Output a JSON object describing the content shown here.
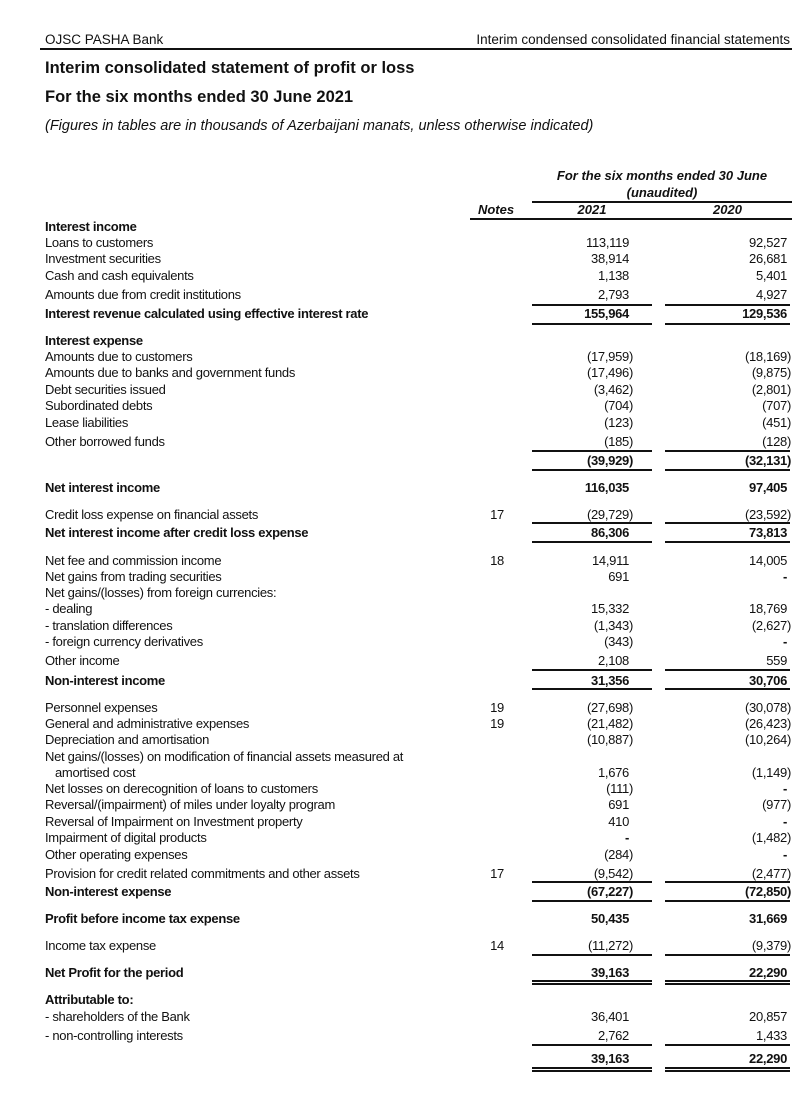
{
  "header": {
    "bank": "OJSC PASHA Bank",
    "doc": "Interim condensed consolidated financial statements"
  },
  "title": "Interim consolidated statement of profit or loss",
  "subtitle": "For the six months ended 30 June 2021",
  "note": "(Figures in tables are in thousands of Azerbaijani manats, unless otherwise indicated)",
  "columns": {
    "period": "For the six months ended 30 June",
    "audit": "(unaudited)",
    "notes": "Notes",
    "y1": "2021",
    "y2": "2020"
  },
  "rows": [
    {
      "label": "Interest income",
      "bold": true
    },
    {
      "label": "Loans to customers",
      "v1": "113,119",
      "v2": "92,527"
    },
    {
      "label": "Investment securities",
      "v1": "38,914",
      "v2": "26,681"
    },
    {
      "label": "Cash and cash equivalents",
      "v1": "1,138",
      "v2": "5,401"
    },
    {
      "label": "Amounts due from credit institutions",
      "v1": "2,793",
      "v2": "4,927"
    },
    {
      "label": "Interest revenue calculated using effective interest rate",
      "v1": "155,964",
      "v2": "129,536",
      "bold": true
    },
    {
      "label": "Interest expense",
      "bold": true
    },
    {
      "label": "Amounts due to customers",
      "v1": "(17,959)",
      "v2": "(18,169)"
    },
    {
      "label": "Amounts due to banks and government funds",
      "v1": "(17,496)",
      "v2": "(9,875)"
    },
    {
      "label": "Debt securities issued",
      "v1": "(3,462)",
      "v2": "(2,801)"
    },
    {
      "label": "Subordinated debts",
      "v1": "(704)",
      "v2": "(707)"
    },
    {
      "label": "Lease liabilities",
      "v1": "(123)",
      "v2": "(451)"
    },
    {
      "label": "Other borrowed funds",
      "v1": "(185)",
      "v2": "(128)"
    },
    {
      "label": "",
      "v1": "(39,929)",
      "v2": "(32,131)",
      "bold": true
    },
    {
      "label": "Net interest income",
      "v1": "116,035",
      "v2": "97,405",
      "bold": true
    },
    {
      "label": "Credit loss expense on financial assets",
      "note": "17",
      "v1": "(29,729)",
      "v2": "(23,592)"
    },
    {
      "label": "Net interest income after credit loss expense",
      "v1": "86,306",
      "v2": "73,813",
      "bold": true
    },
    {
      "label": "Net fee and commission income",
      "note": "18",
      "v1": "14,911",
      "v2": "14,005"
    },
    {
      "label": "Net gains from trading securities",
      "v1": "691",
      "v2": "-"
    },
    {
      "label": "Net gains/(losses) from foreign currencies:"
    },
    {
      "label": "- dealing",
      "v1": "15,332",
      "v2": "18,769"
    },
    {
      "label": "- translation differences",
      "v1": "(1,343)",
      "v2": "(2,627)"
    },
    {
      "label": "- foreign currency derivatives",
      "v1": "(343)",
      "v2": "-"
    },
    {
      "label": "Other income",
      "v1": "2,108",
      "v2": "559"
    },
    {
      "label": "Non-interest income",
      "v1": "31,356",
      "v2": "30,706",
      "bold": true
    },
    {
      "label": "Personnel expenses",
      "note": "19",
      "v1": "(27,698)",
      "v2": "(30,078)"
    },
    {
      "label": "General and administrative expenses",
      "note": "19",
      "v1": "(21,482)",
      "v2": "(26,423)"
    },
    {
      "label": "Depreciation and amortisation",
      "v1": "(10,887)",
      "v2": "(10,264)"
    },
    {
      "label": "Net gains/(losses) on modification of financial assets measured at"
    },
    {
      "label": "amortised cost",
      "indent": true,
      "v1": "1,676",
      "v2": "(1,149)"
    },
    {
      "label": "Net losses on derecognition of loans to customers",
      "v1": "(111)",
      "v2": "-"
    },
    {
      "label": "Reversal/(impairment) of miles under loyalty program",
      "v1": "691",
      "v2": "(977)"
    },
    {
      "label": "Reversal of Impairment on Investment property",
      "v1": "410",
      "v2": "-"
    },
    {
      "label": "Impairment of digital products",
      "v1": "-",
      "v2": "(1,482)"
    },
    {
      "label": "Other operating expenses",
      "v1": "(284)",
      "v2": "-"
    },
    {
      "label": "Provision for credit related commitments and other assets",
      "note": "17",
      "v1": "(9,542)",
      "v2": "(2,477)"
    },
    {
      "label": "Non-interest expense",
      "v1": "(67,227)",
      "v2": "(72,850)",
      "bold": true
    },
    {
      "label": "Profit before income tax expense",
      "v1": "50,435",
      "v2": "31,669",
      "bold": true
    },
    {
      "label": "Income tax expense",
      "note": "14",
      "v1": "(11,272)",
      "v2": "(9,379)"
    },
    {
      "label": "Net Profit for the period",
      "v1": "39,163",
      "v2": "22,290",
      "bold": true
    },
    {
      "label": "Attributable to:",
      "bold": true
    },
    {
      "label": "- shareholders of the Bank",
      "v1": "36,401",
      "v2": "20,857"
    },
    {
      "label": "- non-controlling interests",
      "v1": "2,762",
      "v2": "1,433"
    },
    {
      "label": "",
      "v1": "39,163",
      "v2": "22,290",
      "bold": true
    }
  ]
}
